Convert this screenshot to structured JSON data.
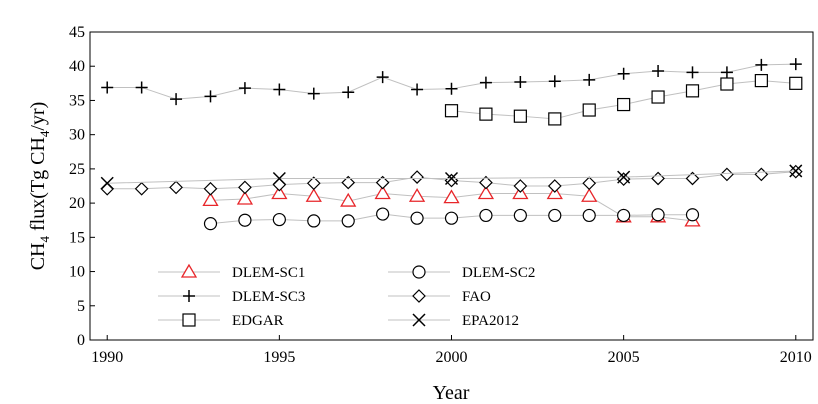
{
  "chart_data": {
    "type": "line",
    "xlabel": "Year",
    "ylabel_main": "CH",
    "ylabel_sub1": "4",
    "ylabel_mid": " flux(Tg CH",
    "ylabel_sub2": "4",
    "ylabel_end": "/yr)",
    "xlim": [
      1989.5,
      2010.5
    ],
    "ylim": [
      0,
      45
    ],
    "xticks": [
      1990,
      1995,
      2000,
      2005,
      2010
    ],
    "yticks": [
      0,
      5,
      10,
      15,
      20,
      25,
      30,
      35,
      40,
      45
    ],
    "grid": false,
    "legend_position": "bottom-left",
    "line_color": "#c0c0c0",
    "series": [
      {
        "name": "DLEM-SC1",
        "marker": "triangle",
        "color": "#e8262a",
        "x": [
          1993,
          1994,
          1995,
          1996,
          1997,
          1998,
          1999,
          2000,
          2001,
          2002,
          2003,
          2004,
          2005,
          2006,
          2007
        ],
        "y": [
          20.4,
          20.6,
          21.4,
          21.0,
          20.3,
          21.4,
          21.0,
          20.8,
          21.4,
          21.4,
          21.4,
          21.0,
          18.0,
          18.0,
          17.4
        ]
      },
      {
        "name": "DLEM-SC2",
        "marker": "circle",
        "color": "#000000",
        "x": [
          1993,
          1994,
          1995,
          1996,
          1997,
          1998,
          1999,
          2000,
          2001,
          2002,
          2003,
          2004,
          2005,
          2006,
          2007
        ],
        "y": [
          17.0,
          17.5,
          17.6,
          17.4,
          17.4,
          18.4,
          17.8,
          17.8,
          18.2,
          18.2,
          18.2,
          18.2,
          18.2,
          18.3,
          18.3
        ]
      },
      {
        "name": "DLEM-SC3",
        "marker": "plus",
        "color": "#000000",
        "x": [
          1990,
          1991,
          1992,
          1993,
          1994,
          1995,
          1996,
          1997,
          1998,
          1999,
          2000,
          2001,
          2002,
          2003,
          2004,
          2005,
          2006,
          2007,
          2008,
          2009,
          2010
        ],
        "y": [
          36.9,
          36.9,
          35.2,
          35.6,
          36.8,
          36.6,
          36.0,
          36.2,
          38.4,
          36.6,
          36.7,
          37.6,
          37.7,
          37.8,
          38.0,
          38.9,
          39.3,
          39.1,
          39.1,
          40.2,
          40.3
        ]
      },
      {
        "name": "FAO",
        "marker": "diamond",
        "color": "#000000",
        "x": [
          1990,
          1991,
          1992,
          1993,
          1994,
          1995,
          1996,
          1997,
          1998,
          1999,
          2000,
          2001,
          2002,
          2003,
          2004,
          2005,
          2006,
          2007,
          2008,
          2009,
          2010
        ],
        "y": [
          22.1,
          22.1,
          22.3,
          22.1,
          22.3,
          22.7,
          22.9,
          23.0,
          23.0,
          23.8,
          23.3,
          23.0,
          22.5,
          22.5,
          22.9,
          23.5,
          23.6,
          23.6,
          24.2,
          24.2,
          24.6
        ]
      },
      {
        "name": "EDGAR",
        "marker": "square",
        "color": "#000000",
        "x": [
          2000,
          2001,
          2002,
          2003,
          2004,
          2005,
          2006,
          2007,
          2008,
          2009,
          2010
        ],
        "y": [
          33.5,
          33.0,
          32.7,
          32.3,
          33.6,
          34.4,
          35.5,
          36.4,
          37.4,
          37.9,
          37.5
        ]
      },
      {
        "name": "EPA2012",
        "marker": "x",
        "color": "#000000",
        "x": [
          1990,
          1995,
          2000,
          2005,
          2010
        ],
        "y": [
          22.9,
          23.6,
          23.6,
          23.8,
          24.7
        ]
      }
    ]
  }
}
